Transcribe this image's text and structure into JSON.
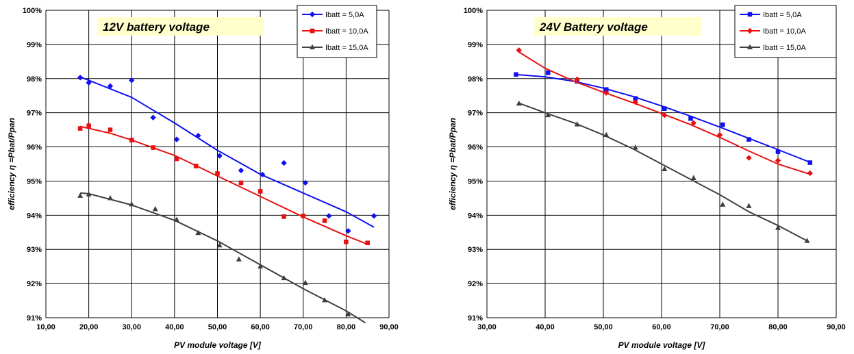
{
  "chart_data": [
    {
      "type": "scatter",
      "annotation": "12V battery voltage",
      "xlabel": "PV module voltage [V]",
      "ylabel": "efficiency η =Pbat/Ppan",
      "xlim": [
        10,
        90
      ],
      "ylim": [
        91,
        100
      ],
      "x_ticks": [
        "10,00",
        "20,00",
        "30,00",
        "40,00",
        "50,00",
        "60,00",
        "70,00",
        "80,00",
        "90,00"
      ],
      "y_ticks": [
        "91%",
        "92%",
        "93%",
        "94%",
        "95%",
        "96%",
        "97%",
        "98%",
        "99%",
        "100%"
      ],
      "grid": true,
      "legend_position": "top-right",
      "series": [
        {
          "name": "Ibatt = 5,0A",
          "color": "#1010f0",
          "marker": "diamond",
          "x": [
            18.0,
            20.0,
            25.0,
            30.0,
            35.0,
            40.5,
            45.5,
            50.5,
            55.5,
            60.5,
            65.5,
            70.5,
            76.0,
            80.5,
            86.5
          ],
          "y": [
            98.03,
            97.88,
            97.78,
            97.95,
            96.86,
            96.22,
            96.33,
            95.74,
            95.31,
            95.19,
            95.53,
            94.95,
            93.98,
            93.54,
            93.98
          ],
          "trend_x": [
            18.0,
            30.0,
            40.0,
            50.0,
            60.0,
            70.0,
            80.0,
            86.5
          ],
          "trend_y": [
            98.05,
            97.45,
            96.7,
            95.9,
            95.2,
            94.65,
            94.1,
            93.65
          ]
        },
        {
          "name": "Ibatt = 10,0A",
          "color": "#e81010",
          "marker": "square",
          "x": [
            18.0,
            20.0,
            25.0,
            30.0,
            35.0,
            40.5,
            45.0,
            50.0,
            55.5,
            60.0,
            65.5,
            70.0,
            75.0,
            80.0,
            85.0
          ],
          "y": [
            96.54,
            96.62,
            96.5,
            96.2,
            95.98,
            95.65,
            95.44,
            95.22,
            94.95,
            94.7,
            93.96,
            93.98,
            93.84,
            93.22,
            93.19
          ],
          "trend_x": [
            18.0,
            25.0,
            30.0,
            40.0,
            50.0,
            60.0,
            70.0,
            80.0,
            85.0
          ],
          "trend_y": [
            96.6,
            96.4,
            96.2,
            95.75,
            95.15,
            94.55,
            93.95,
            93.4,
            93.15
          ]
        },
        {
          "name": "Ibatt = 15,0A",
          "color": "#404040",
          "marker": "triangle",
          "x": [
            18.0,
            20.0,
            25.0,
            30.0,
            35.5,
            40.5,
            45.5,
            50.5,
            55.0,
            60.0,
            65.5,
            70.5,
            75.0,
            80.5
          ],
          "y": [
            94.57,
            94.61,
            94.5,
            94.32,
            94.18,
            93.87,
            93.48,
            93.12,
            92.71,
            92.5,
            92.16,
            92.02,
            91.51,
            91.1
          ],
          "trend_x": [
            18.0,
            20.0,
            30.0,
            40.0,
            50.0,
            60.0,
            70.0,
            80.0,
            84.5
          ],
          "trend_y": [
            94.65,
            94.63,
            94.3,
            93.85,
            93.25,
            92.55,
            91.85,
            91.2,
            90.85
          ]
        }
      ]
    },
    {
      "type": "scatter",
      "annotation": "24V Battery voltage",
      "xlabel": "PV module voltage [V]",
      "ylabel": "efficiency η =Pbat/Ppan",
      "xlim": [
        30,
        90
      ],
      "ylim": [
        91,
        100
      ],
      "x_ticks": [
        "30,00",
        "40,00",
        "50,00",
        "60,00",
        "70,00",
        "80,00",
        "90,00"
      ],
      "y_ticks": [
        "91%",
        "92%",
        "93%",
        "94%",
        "95%",
        "96%",
        "97%",
        "98%",
        "99%",
        "100%"
      ],
      "grid": true,
      "legend_position": "top-right",
      "series": [
        {
          "name": "Ibatt = 5,0A",
          "color": "#1010f0",
          "marker": "square",
          "x": [
            35.0,
            40.5,
            45.5,
            50.5,
            55.5,
            60.5,
            65.0,
            70.5,
            75.0,
            80.0,
            85.5
          ],
          "y": [
            98.12,
            98.17,
            97.92,
            97.68,
            97.42,
            97.12,
            96.83,
            96.65,
            96.22,
            95.86,
            95.54
          ],
          "trend_x": [
            35.0,
            40.0,
            45.0,
            50.0,
            55.0,
            60.0,
            65.0,
            70.0,
            75.0,
            80.0,
            85.5
          ],
          "trend_y": [
            98.12,
            98.05,
            97.92,
            97.72,
            97.48,
            97.2,
            96.9,
            96.58,
            96.25,
            95.92,
            95.55
          ]
        },
        {
          "name": "Ibatt = 10,0A",
          "color": "#e81010",
          "marker": "diamond",
          "x": [
            35.5,
            45.5,
            50.5,
            55.5,
            60.5,
            65.5,
            70.0,
            75.0,
            80.0,
            85.5
          ],
          "y": [
            98.83,
            97.98,
            97.58,
            97.31,
            96.93,
            96.7,
            96.35,
            95.68,
            95.6,
            95.23
          ],
          "trend_x": [
            35.5,
            40.0,
            45.0,
            50.0,
            55.0,
            60.0,
            65.0,
            70.0,
            75.0,
            80.0,
            85.5
          ],
          "trend_y": [
            98.78,
            98.3,
            97.92,
            97.6,
            97.3,
            96.98,
            96.65,
            96.28,
            95.88,
            95.5,
            95.2
          ]
        },
        {
          "name": "Ibatt = 15,0A",
          "color": "#404040",
          "marker": "triangle",
          "x": [
            35.5,
            40.5,
            45.5,
            50.5,
            55.5,
            60.5,
            65.5,
            70.5,
            75.0,
            80.0,
            85.0
          ],
          "y": [
            97.27,
            96.93,
            96.66,
            96.35,
            95.98,
            95.35,
            95.09,
            94.31,
            94.27,
            93.63,
            93.25
          ],
          "trend_x": [
            35.5,
            40.0,
            45.0,
            50.0,
            55.0,
            60.0,
            65.0,
            70.0,
            75.0,
            80.0,
            85.0
          ],
          "trend_y": [
            97.28,
            97.0,
            96.7,
            96.35,
            95.95,
            95.5,
            95.05,
            94.6,
            94.1,
            93.7,
            93.25
          ]
        }
      ]
    }
  ]
}
